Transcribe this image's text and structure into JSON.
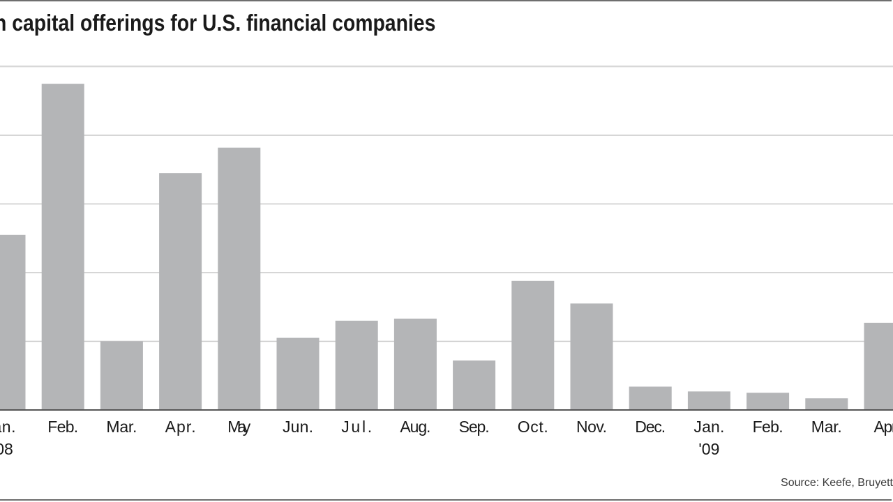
{
  "header": {
    "title": "n capital offerings for U.S. financial companies"
  },
  "footer": {
    "source": "Source: Keefe, Bruyett"
  },
  "chart_data": {
    "type": "bar",
    "title": "n capital offerings for U.S. financial companies",
    "categories": [
      "an.",
      "Feb.",
      "Mar.",
      "Apr.",
      "May",
      "Jun.",
      "Jul.",
      "Aug.",
      "Sep.",
      "Oct.",
      "Nov.",
      "Dec.",
      "Jan.",
      "Feb.",
      "Mar.",
      "Apr"
    ],
    "sub_labels": [
      "08",
      "",
      "",
      "",
      "",
      "",
      "",
      "",
      "",
      "",
      "",
      "",
      "'09",
      "",
      "",
      ""
    ],
    "values": [
      2.55,
      4.75,
      1.0,
      3.45,
      3.82,
      1.05,
      1.3,
      1.33,
      0.72,
      1.88,
      1.55,
      0.34,
      0.27,
      0.25,
      0.17,
      1.27
    ],
    "ylim": [
      0,
      5
    ],
    "gridlines": [
      1,
      2,
      3,
      4,
      5
    ],
    "grid": true,
    "bar_color": "#b4b5b7",
    "grid_color": "#c8c8c8",
    "axis_color": "#555555"
  }
}
